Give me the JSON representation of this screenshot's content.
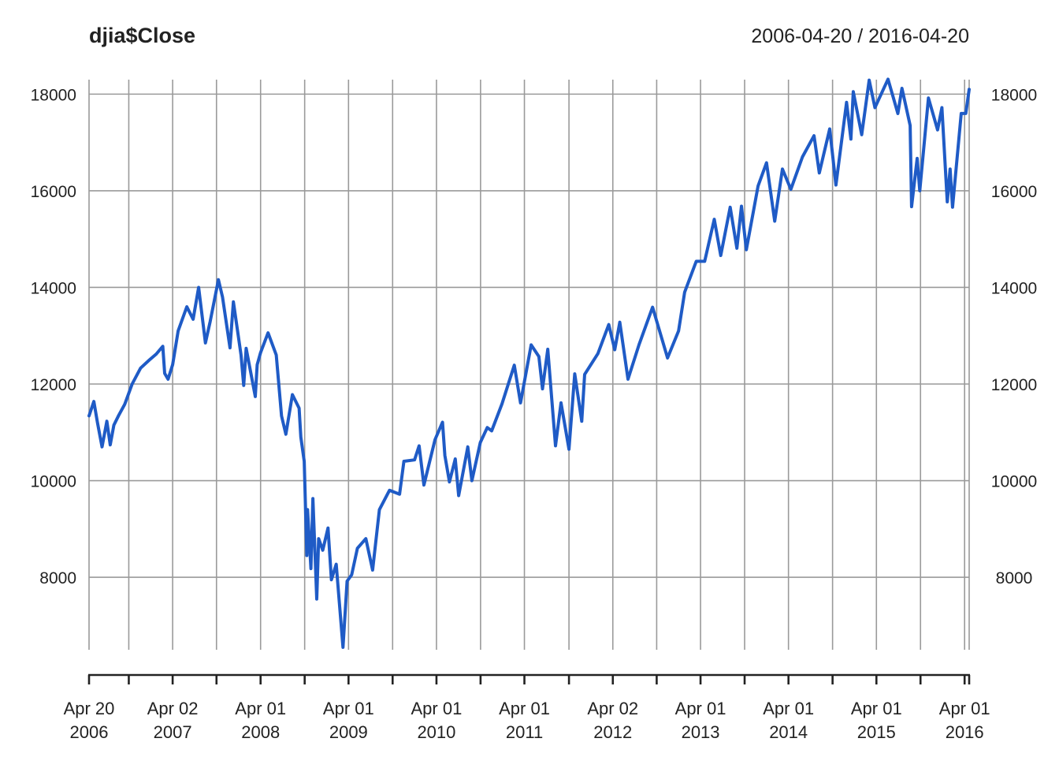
{
  "chart_data": {
    "type": "line",
    "title": "djia$Close",
    "date_range": "2006-04-20 / 2016-04-20",
    "xlim": [
      "2006-04-20",
      "2016-04-20"
    ],
    "ylim": [
      6500,
      18300
    ],
    "y_ticks": [
      8000,
      10000,
      12000,
      14000,
      16000,
      18000
    ],
    "y_tick_labels": [
      "8000",
      "10000",
      "12000",
      "14000",
      "16000",
      "18000"
    ],
    "x_ticks": [
      {
        "date": "2006-04-20",
        "label": [
          "Apr 20",
          "2006"
        ]
      },
      {
        "date": "2007-04-02",
        "label": [
          "Apr 02",
          "2007"
        ]
      },
      {
        "date": "2008-04-01",
        "label": [
          "Apr 01",
          "2008"
        ]
      },
      {
        "date": "2009-04-01",
        "label": [
          "Apr 01",
          "2009"
        ]
      },
      {
        "date": "2010-04-01",
        "label": [
          "Apr 01",
          "2010"
        ]
      },
      {
        "date": "2011-04-01",
        "label": [
          "Apr 01",
          "2011"
        ]
      },
      {
        "date": "2012-04-02",
        "label": [
          "Apr 02",
          "2012"
        ]
      },
      {
        "date": "2013-04-01",
        "label": [
          "Apr 01",
          "2013"
        ]
      },
      {
        "date": "2014-04-01",
        "label": [
          "Apr 01",
          "2014"
        ]
      },
      {
        "date": "2015-04-01",
        "label": [
          "Apr 01",
          "2015"
        ]
      },
      {
        "date": "2016-04-01",
        "label": [
          "Apr 01",
          "2016"
        ]
      }
    ],
    "minor_ticks": [
      "2006-10-02",
      "2007-10-01",
      "2008-10-01",
      "2009-10-01",
      "2010-10-01",
      "2011-10-03",
      "2012-10-01",
      "2013-10-01",
      "2014-10-01",
      "2015-10-01"
    ],
    "grid": true,
    "series": [
      {
        "color": "#1f5bc6",
        "points": [
          [
            "2006-04-20",
            11340
          ],
          [
            "2006-05-10",
            11640
          ],
          [
            "2006-05-25",
            11200
          ],
          [
            "2006-06-13",
            10700
          ],
          [
            "2006-07-03",
            11230
          ],
          [
            "2006-07-17",
            10740
          ],
          [
            "2006-08-01",
            11150
          ],
          [
            "2006-08-21",
            11350
          ],
          [
            "2006-09-15",
            11580
          ],
          [
            "2006-10-16",
            12000
          ],
          [
            "2006-11-20",
            12330
          ],
          [
            "2006-12-27",
            12500
          ],
          [
            "2007-01-24",
            12620
          ],
          [
            "2007-02-20",
            12780
          ],
          [
            "2007-02-28",
            12220
          ],
          [
            "2007-03-14",
            12100
          ],
          [
            "2007-04-02",
            12400
          ],
          [
            "2007-04-25",
            13100
          ],
          [
            "2007-05-31",
            13600
          ],
          [
            "2007-06-26",
            13340
          ],
          [
            "2007-07-19",
            14000
          ],
          [
            "2007-08-16",
            12850
          ],
          [
            "2007-09-05",
            13300
          ],
          [
            "2007-10-09",
            14160
          ],
          [
            "2007-10-26",
            13800
          ],
          [
            "2007-11-26",
            12750
          ],
          [
            "2007-12-10",
            13700
          ],
          [
            "2008-01-11",
            12600
          ],
          [
            "2008-01-22",
            11970
          ],
          [
            "2008-02-01",
            12740
          ],
          [
            "2008-03-10",
            11740
          ],
          [
            "2008-03-18",
            12400
          ],
          [
            "2008-04-01",
            12650
          ],
          [
            "2008-05-02",
            13060
          ],
          [
            "2008-06-05",
            12600
          ],
          [
            "2008-06-27",
            11340
          ],
          [
            "2008-07-15",
            10960
          ],
          [
            "2008-08-11",
            11780
          ],
          [
            "2008-09-08",
            11500
          ],
          [
            "2008-09-15",
            10900
          ],
          [
            "2008-09-29",
            10400
          ],
          [
            "2008-10-10",
            8450
          ],
          [
            "2008-10-13",
            9400
          ],
          [
            "2008-10-27",
            8180
          ],
          [
            "2008-11-04",
            9630
          ],
          [
            "2008-11-20",
            7550
          ],
          [
            "2008-11-28",
            8800
          ],
          [
            "2008-12-15",
            8560
          ],
          [
            "2009-01-06",
            9020
          ],
          [
            "2009-01-20",
            7950
          ],
          [
            "2009-02-09",
            8270
          ],
          [
            "2009-03-09",
            6550
          ],
          [
            "2009-03-26",
            7920
          ],
          [
            "2009-04-14",
            8050
          ],
          [
            "2009-05-08",
            8600
          ],
          [
            "2009-06-12",
            8800
          ],
          [
            "2009-07-10",
            8150
          ],
          [
            "2009-08-07",
            9400
          ],
          [
            "2009-09-18",
            9800
          ],
          [
            "2009-10-30",
            9720
          ],
          [
            "2009-11-17",
            10400
          ],
          [
            "2009-12-31",
            10430
          ],
          [
            "2010-01-19",
            10720
          ],
          [
            "2010-02-08",
            9910
          ],
          [
            "2010-03-26",
            10850
          ],
          [
            "2010-04-26",
            11210
          ],
          [
            "2010-05-06",
            10520
          ],
          [
            "2010-05-25",
            9975
          ],
          [
            "2010-06-18",
            10450
          ],
          [
            "2010-07-02",
            9690
          ],
          [
            "2010-08-09",
            10700
          ],
          [
            "2010-08-26",
            10000
          ],
          [
            "2010-09-30",
            10790
          ],
          [
            "2010-10-29",
            11100
          ],
          [
            "2010-11-16",
            11030
          ],
          [
            "2010-12-29",
            11590
          ],
          [
            "2011-02-18",
            12390
          ],
          [
            "2011-03-16",
            11610
          ],
          [
            "2011-04-29",
            12810
          ],
          [
            "2011-05-31",
            12570
          ],
          [
            "2011-06-15",
            11900
          ],
          [
            "2011-07-07",
            12720
          ],
          [
            "2011-08-08",
            10720
          ],
          [
            "2011-08-31",
            11610
          ],
          [
            "2011-10-03",
            10650
          ],
          [
            "2011-10-27",
            12210
          ],
          [
            "2011-11-25",
            11230
          ],
          [
            "2011-12-07",
            12200
          ],
          [
            "2012-01-31",
            12630
          ],
          [
            "2012-03-16",
            13230
          ],
          [
            "2012-04-10",
            12710
          ],
          [
            "2012-05-01",
            13280
          ],
          [
            "2012-06-04",
            12100
          ],
          [
            "2012-07-20",
            12820
          ],
          [
            "2012-09-14",
            13590
          ],
          [
            "2012-11-15",
            12540
          ],
          [
            "2012-12-31",
            13100
          ],
          [
            "2013-01-25",
            13900
          ],
          [
            "2013-03-14",
            14540
          ],
          [
            "2013-04-18",
            14540
          ],
          [
            "2013-05-28",
            15410
          ],
          [
            "2013-06-24",
            14660
          ],
          [
            "2013-08-02",
            15660
          ],
          [
            "2013-08-30",
            14810
          ],
          [
            "2013-09-18",
            15680
          ],
          [
            "2013-10-08",
            14780
          ],
          [
            "2013-11-26",
            16100
          ],
          [
            "2013-12-31",
            16580
          ],
          [
            "2014-02-03",
            15370
          ],
          [
            "2014-03-07",
            16450
          ],
          [
            "2014-04-11",
            16030
          ],
          [
            "2014-05-29",
            16700
          ],
          [
            "2014-07-16",
            17140
          ],
          [
            "2014-08-07",
            16370
          ],
          [
            "2014-09-19",
            17280
          ],
          [
            "2014-10-15",
            16120
          ],
          [
            "2014-11-28",
            17830
          ],
          [
            "2014-12-16",
            17070
          ],
          [
            "2014-12-26",
            18050
          ],
          [
            "2015-01-30",
            17160
          ],
          [
            "2015-03-02",
            18290
          ],
          [
            "2015-03-26",
            17720
          ],
          [
            "2015-05-19",
            18310
          ],
          [
            "2015-06-29",
            17600
          ],
          [
            "2015-07-16",
            18120
          ],
          [
            "2015-08-19",
            17350
          ],
          [
            "2015-08-25",
            15670
          ],
          [
            "2015-09-17",
            16670
          ],
          [
            "2015-09-28",
            16000
          ],
          [
            "2015-11-03",
            17920
          ],
          [
            "2015-12-11",
            17260
          ],
          [
            "2015-12-29",
            17720
          ],
          [
            "2016-01-20",
            15770
          ],
          [
            "2016-02-01",
            16450
          ],
          [
            "2016-02-11",
            15660
          ],
          [
            "2016-03-18",
            17600
          ],
          [
            "2016-04-06",
            17600
          ],
          [
            "2016-04-20",
            18100
          ]
        ]
      }
    ]
  }
}
